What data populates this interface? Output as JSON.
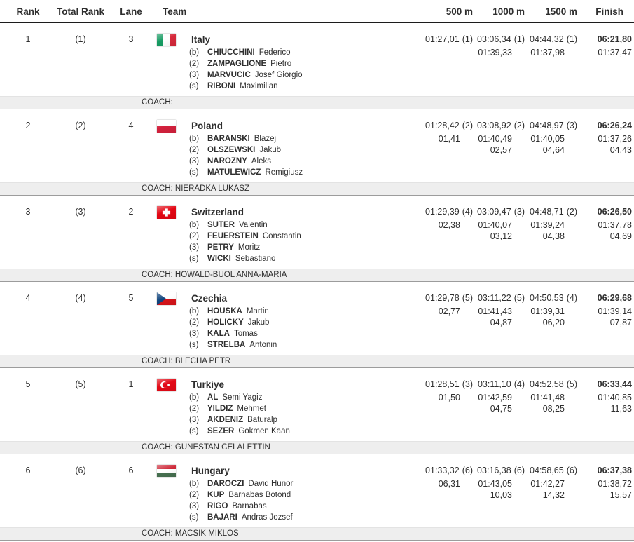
{
  "table": {
    "headers": {
      "rank": "Rank",
      "total_rank": "Total Rank",
      "lane": "Lane",
      "team": "Team",
      "m500": "500 m",
      "m1000": "1000 m",
      "m1500": "1500 m",
      "finish": "Finish"
    },
    "rows": [
      {
        "rank": "1",
        "total_rank": "(1)",
        "lane": "3",
        "team": "Italy",
        "flag": "italy",
        "crew": [
          {
            "seat": "(b)",
            "surname": "CHIUCCHINI",
            "given": "Federico"
          },
          {
            "seat": "(2)",
            "surname": "ZAMPAGLIONE",
            "given": "Pietro"
          },
          {
            "seat": "(3)",
            "surname": "MARVUCIC",
            "given": "Josef Giorgio"
          },
          {
            "seat": "(s)",
            "surname": "RIBONI",
            "given": "Maximilian"
          }
        ],
        "coach": "COACH:",
        "splits": {
          "m500": {
            "time": "01:27,01",
            "pos": "(1)",
            "gap": ""
          },
          "m1000": {
            "time": "03:06,34",
            "pos": "(1)",
            "lap": "01:39,33",
            "gap": ""
          },
          "m1500": {
            "time": "04:44,32",
            "pos": "(1)",
            "lap": "01:37,98",
            "gap": ""
          },
          "finish": {
            "time": "06:21,80",
            "lap": "01:37,47",
            "gap": ""
          }
        }
      },
      {
        "rank": "2",
        "total_rank": "(2)",
        "lane": "4",
        "team": "Poland",
        "flag": "poland",
        "crew": [
          {
            "seat": "(b)",
            "surname": "BARANSKI",
            "given": "Blazej"
          },
          {
            "seat": "(2)",
            "surname": "OLSZEWSKI",
            "given": "Jakub"
          },
          {
            "seat": "(3)",
            "surname": "NAROZNY",
            "given": "Aleks"
          },
          {
            "seat": "(s)",
            "surname": "MATULEWICZ",
            "given": "Remigiusz"
          }
        ],
        "coach": "COACH: NIERADKA LUKASZ",
        "splits": {
          "m500": {
            "time": "01:28,42",
            "pos": "(2)",
            "gap": "01,41"
          },
          "m1000": {
            "time": "03:08,92",
            "pos": "(2)",
            "lap": "01:40,49",
            "gap": "02,57"
          },
          "m1500": {
            "time": "04:48,97",
            "pos": "(3)",
            "lap": "01:40,05",
            "gap": "04,64"
          },
          "finish": {
            "time": "06:26,24",
            "lap": "01:37,26",
            "gap": "04,43"
          }
        }
      },
      {
        "rank": "3",
        "total_rank": "(3)",
        "lane": "2",
        "team": "Switzerland",
        "flag": "switzerland",
        "crew": [
          {
            "seat": "(b)",
            "surname": "SUTER",
            "given": "Valentin"
          },
          {
            "seat": "(2)",
            "surname": "FEUERSTEIN",
            "given": "Constantin"
          },
          {
            "seat": "(3)",
            "surname": "PETRY",
            "given": "Moritz"
          },
          {
            "seat": "(s)",
            "surname": "WICKI",
            "given": "Sebastiano"
          }
        ],
        "coach": "COACH: HOWALD-BUOL ANNA-MARIA",
        "splits": {
          "m500": {
            "time": "01:29,39",
            "pos": "(4)",
            "gap": "02,38"
          },
          "m1000": {
            "time": "03:09,47",
            "pos": "(3)",
            "lap": "01:40,07",
            "gap": "03,12"
          },
          "m1500": {
            "time": "04:48,71",
            "pos": "(2)",
            "lap": "01:39,24",
            "gap": "04,38"
          },
          "finish": {
            "time": "06:26,50",
            "lap": "01:37,78",
            "gap": "04,69"
          }
        }
      },
      {
        "rank": "4",
        "total_rank": "(4)",
        "lane": "5",
        "team": "Czechia",
        "flag": "czechia",
        "crew": [
          {
            "seat": "(b)",
            "surname": "HOUSKA",
            "given": "Martin"
          },
          {
            "seat": "(2)",
            "surname": "HOLICKY",
            "given": "Jakub"
          },
          {
            "seat": "(3)",
            "surname": "KALA",
            "given": "Tomas"
          },
          {
            "seat": "(s)",
            "surname": "STRELBA",
            "given": "Antonin"
          }
        ],
        "coach": "COACH: BLECHA PETR",
        "splits": {
          "m500": {
            "time": "01:29,78",
            "pos": "(5)",
            "gap": "02,77"
          },
          "m1000": {
            "time": "03:11,22",
            "pos": "(5)",
            "lap": "01:41,43",
            "gap": "04,87"
          },
          "m1500": {
            "time": "04:50,53",
            "pos": "(4)",
            "lap": "01:39,31",
            "gap": "06,20"
          },
          "finish": {
            "time": "06:29,68",
            "lap": "01:39,14",
            "gap": "07,87"
          }
        }
      },
      {
        "rank": "5",
        "total_rank": "(5)",
        "lane": "1",
        "team": "Turkiye",
        "flag": "turkiye",
        "crew": [
          {
            "seat": "(b)",
            "surname": "AL",
            "given": "Semi Yagiz"
          },
          {
            "seat": "(2)",
            "surname": "YILDIZ",
            "given": "Mehmet"
          },
          {
            "seat": "(3)",
            "surname": "AKDENIZ",
            "given": "Baturalp"
          },
          {
            "seat": "(s)",
            "surname": "SEZER",
            "given": "Gokmen Kaan"
          }
        ],
        "coach": "COACH: GUNESTAN CELALETTIN",
        "splits": {
          "m500": {
            "time": "01:28,51",
            "pos": "(3)",
            "gap": "01,50"
          },
          "m1000": {
            "time": "03:11,10",
            "pos": "(4)",
            "lap": "01:42,59",
            "gap": "04,75"
          },
          "m1500": {
            "time": "04:52,58",
            "pos": "(5)",
            "lap": "01:41,48",
            "gap": "08,25"
          },
          "finish": {
            "time": "06:33,44",
            "lap": "01:40,85",
            "gap": "11,63"
          }
        }
      },
      {
        "rank": "6",
        "total_rank": "(6)",
        "lane": "6",
        "team": "Hungary",
        "flag": "hungary",
        "crew": [
          {
            "seat": "(b)",
            "surname": "DAROCZI",
            "given": "David Hunor"
          },
          {
            "seat": "(2)",
            "surname": "KUP",
            "given": "Barnabas Botond"
          },
          {
            "seat": "(3)",
            "surname": "RIGO",
            "given": "Barnabas"
          },
          {
            "seat": "(s)",
            "surname": "BAJARI",
            "given": "Andras Jozsef"
          }
        ],
        "coach": "COACH: MACSIK MIKLOS",
        "splits": {
          "m500": {
            "time": "01:33,32",
            "pos": "(6)",
            "gap": "06,31"
          },
          "m1000": {
            "time": "03:16,38",
            "pos": "(6)",
            "lap": "01:43,05",
            "gap": "10,03"
          },
          "m1500": {
            "time": "04:58,65",
            "pos": "(6)",
            "lap": "01:42,27",
            "gap": "14,32"
          },
          "finish": {
            "time": "06:37,38",
            "lap": "01:38,72",
            "gap": "15,57"
          }
        }
      }
    ]
  },
  "colors": {
    "header_rule": "#1c1c1c",
    "coach_bar_bg": "#eeeeee",
    "coach_bar_border": "#9c9c9c",
    "text": "#2e2e2e"
  }
}
